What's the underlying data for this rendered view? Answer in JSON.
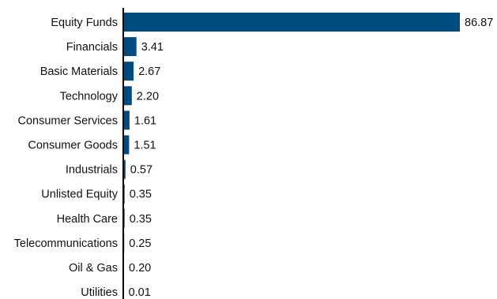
{
  "chart_data": {
    "type": "bar",
    "orientation": "horizontal",
    "categories": [
      "Equity Funds",
      "Financials",
      "Basic Materials",
      "Technology",
      "Consumer Services",
      "Consumer Goods",
      "Industrials",
      "Unlisted Equity",
      "Health Care",
      "Telecommunications",
      "Oil & Gas",
      "Utilities"
    ],
    "values": [
      86.87,
      3.41,
      2.67,
      2.2,
      1.61,
      1.51,
      0.57,
      0.35,
      0.35,
      0.25,
      0.2,
      0.01
    ],
    "value_labels": [
      "86.87",
      "3.41",
      "2.67",
      "2.20",
      "1.61",
      "1.51",
      "0.57",
      "0.35",
      "0.35",
      "0.25",
      "0.20",
      "0.01"
    ],
    "xlim": [
      0,
      86.87
    ],
    "grid": false,
    "bar_color": "#004b80",
    "axis_color": "#000000"
  }
}
